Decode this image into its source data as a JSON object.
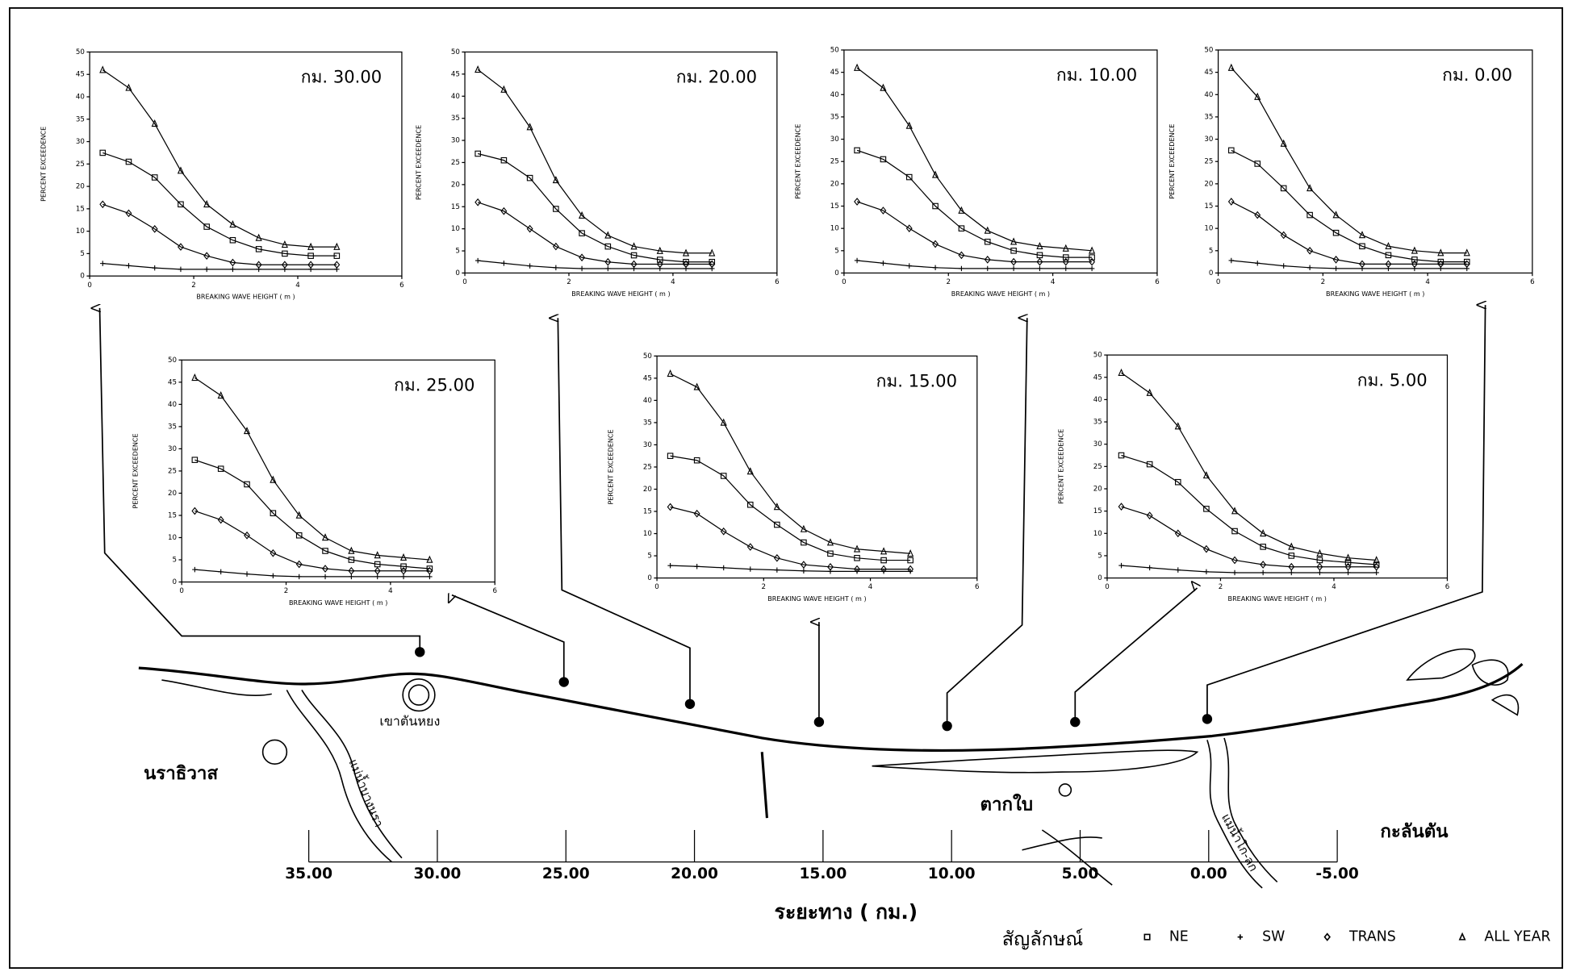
{
  "chart_data": [
    {
      "type": "line",
      "title": "กม. 30.00",
      "xlabel": "BREAKING WAVE HEIGHT ( m )",
      "ylabel": "PERCENT EXCEEDENCE",
      "xlim": [
        0,
        6
      ],
      "xticks": [
        0,
        2,
        4,
        6
      ],
      "ylim": [
        0,
        50
      ],
      "yticks": [
        0,
        5,
        10,
        15,
        20,
        25,
        30,
        35,
        40,
        45,
        50
      ],
      "x": [
        0.25,
        0.75,
        1.25,
        1.75,
        2.25,
        2.75,
        3.25,
        3.75,
        4.25,
        4.75
      ],
      "series": [
        {
          "name": "NE",
          "marker": "square",
          "color": "#000000",
          "values": [
            27.5,
            25.5,
            22,
            16,
            11,
            8,
            6,
            5,
            4.5,
            4.5
          ]
        },
        {
          "name": "SW",
          "marker": "plus",
          "color": "#000000",
          "values": [
            2.8,
            2.3,
            1.8,
            1.5,
            1.5,
            1.5,
            1.5,
            1.5,
            1.5,
            1.5
          ]
        },
        {
          "name": "TRANS",
          "marker": "diamond",
          "color": "#000000",
          "values": [
            16,
            14,
            10.5,
            6.5,
            4.5,
            3,
            2.5,
            2.5,
            2.5,
            2.5
          ]
        },
        {
          "name": "ALL YEAR",
          "marker": "triangle",
          "color": "#000000",
          "values": [
            46,
            42,
            34,
            23.5,
            16,
            11.5,
            8.5,
            7,
            6.5,
            6.5
          ]
        }
      ]
    },
    {
      "type": "line",
      "title": "กม. 20.00",
      "xlabel": "BREAKING WAVE HEIGHT ( m )",
      "ylabel": "PERCENT EXCEEDENCE",
      "xlim": [
        0,
        6
      ],
      "xticks": [
        0,
        2,
        4,
        6
      ],
      "ylim": [
        0,
        50
      ],
      "yticks": [
        0,
        5,
        10,
        15,
        20,
        25,
        30,
        35,
        40,
        45,
        50
      ],
      "x": [
        0.25,
        0.75,
        1.25,
        1.75,
        2.25,
        2.75,
        3.25,
        3.75,
        4.25,
        4.75
      ],
      "series": [
        {
          "name": "NE",
          "marker": "square",
          "color": "#000000",
          "values": [
            27,
            25.5,
            21.5,
            14.5,
            9,
            6,
            4,
            3,
            2.5,
            2.5
          ]
        },
        {
          "name": "SW",
          "marker": "plus",
          "color": "#000000",
          "values": [
            2.8,
            2.2,
            1.6,
            1.2,
            1,
            1,
            1,
            1,
            1,
            1
          ]
        },
        {
          "name": "TRANS",
          "marker": "diamond",
          "color": "#000000",
          "values": [
            16,
            14,
            10,
            6,
            3.5,
            2.5,
            2,
            2,
            2,
            2
          ]
        },
        {
          "name": "ALL YEAR",
          "marker": "triangle",
          "color": "#000000",
          "values": [
            46,
            41.5,
            33,
            21,
            13,
            8.5,
            6,
            5,
            4.5,
            4.5
          ]
        }
      ]
    },
    {
      "type": "line",
      "title": "กม. 10.00",
      "xlabel": "BREAKING WAVE HEIGHT ( m )",
      "ylabel": "PERCENT EXCEEDENCE",
      "xlim": [
        0,
        6
      ],
      "xticks": [
        0,
        2,
        4,
        6
      ],
      "ylim": [
        0,
        50
      ],
      "yticks": [
        0,
        5,
        10,
        15,
        20,
        25,
        30,
        35,
        40,
        45,
        50
      ],
      "x": [
        0.25,
        0.75,
        1.25,
        1.75,
        2.25,
        2.75,
        3.25,
        3.75,
        4.25,
        4.75
      ],
      "series": [
        {
          "name": "NE",
          "marker": "square",
          "color": "#000000",
          "values": [
            27.5,
            25.5,
            21.5,
            15,
            10,
            7,
            5,
            4,
            3.5,
            3.5
          ]
        },
        {
          "name": "SW",
          "marker": "plus",
          "color": "#000000",
          "values": [
            2.8,
            2.2,
            1.6,
            1.2,
            1,
            1,
            1,
            1,
            1,
            1
          ]
        },
        {
          "name": "TRANS",
          "marker": "diamond",
          "color": "#000000",
          "values": [
            16,
            14,
            10,
            6.5,
            4,
            3,
            2.5,
            2.5,
            2.5,
            2.5
          ]
        },
        {
          "name": "ALL YEAR",
          "marker": "triangle",
          "color": "#000000",
          "values": [
            46,
            41.5,
            33,
            22,
            14,
            9.5,
            7,
            6,
            5.5,
            5
          ]
        }
      ]
    },
    {
      "type": "line",
      "title": "กม. 0.00",
      "xlabel": "BREAKING WAVE HEIGHT ( m )",
      "ylabel": "PERCENT EXCEEDENCE",
      "xlim": [
        0,
        6
      ],
      "xticks": [
        0,
        2,
        4,
        6
      ],
      "ylim": [
        0,
        50
      ],
      "yticks": [
        0,
        5,
        10,
        15,
        20,
        25,
        30,
        35,
        40,
        45,
        50
      ],
      "x": [
        0.25,
        0.75,
        1.25,
        1.75,
        2.25,
        2.75,
        3.25,
        3.75,
        4.25,
        4.75
      ],
      "series": [
        {
          "name": "NE",
          "marker": "square",
          "color": "#000000",
          "values": [
            27.5,
            24.5,
            19,
            13,
            9,
            6,
            4,
            3,
            2.5,
            2.5
          ]
        },
        {
          "name": "SW",
          "marker": "plus",
          "color": "#000000",
          "values": [
            2.8,
            2.2,
            1.6,
            1.2,
            1,
            1,
            1,
            1,
            1,
            1
          ]
        },
        {
          "name": "TRANS",
          "marker": "diamond",
          "color": "#000000",
          "values": [
            16,
            13,
            8.5,
            5,
            3,
            2,
            2,
            2,
            2,
            2
          ]
        },
        {
          "name": "ALL YEAR",
          "marker": "triangle",
          "color": "#000000",
          "values": [
            46,
            39.5,
            29,
            19,
            13,
            8.5,
            6,
            5,
            4.5,
            4.5
          ]
        }
      ]
    },
    {
      "type": "line",
      "title": "กม. 25.00",
      "xlabel": "BREAKING WAVE HEIGHT ( m )",
      "ylabel": "PERCENT EXCEEDENCE",
      "xlim": [
        0,
        6
      ],
      "xticks": [
        0,
        2,
        4,
        6
      ],
      "ylim": [
        0,
        50
      ],
      "yticks": [
        0,
        5,
        10,
        15,
        20,
        25,
        30,
        35,
        40,
        45,
        50
      ],
      "x": [
        0.25,
        0.75,
        1.25,
        1.75,
        2.25,
        2.75,
        3.25,
        3.75,
        4.25,
        4.75
      ],
      "series": [
        {
          "name": "NE",
          "marker": "square",
          "color": "#000000",
          "values": [
            27.5,
            25.5,
            22,
            15.5,
            10.5,
            7,
            5,
            4,
            3.5,
            3
          ]
        },
        {
          "name": "SW",
          "marker": "plus",
          "color": "#000000",
          "values": [
            2.8,
            2.3,
            1.8,
            1.4,
            1.2,
            1.2,
            1.2,
            1.2,
            1.2,
            1.2
          ]
        },
        {
          "name": "TRANS",
          "marker": "diamond",
          "color": "#000000",
          "values": [
            16,
            14,
            10.5,
            6.5,
            4,
            3,
            2.5,
            2.5,
            2.5,
            2.5
          ]
        },
        {
          "name": "ALL YEAR",
          "marker": "triangle",
          "color": "#000000",
          "values": [
            46,
            42,
            34,
            23,
            15,
            10,
            7,
            6,
            5.5,
            5
          ]
        }
      ]
    },
    {
      "type": "line",
      "title": "กม. 15.00",
      "xlabel": "BREAKING WAVE HEIGHT ( m )",
      "ylabel": "PERCENT EXCEEDENCE",
      "xlim": [
        0,
        6
      ],
      "xticks": [
        0,
        2,
        4,
        6
      ],
      "ylim": [
        0,
        50
      ],
      "yticks": [
        0,
        5,
        10,
        15,
        20,
        25,
        30,
        35,
        40,
        45,
        50
      ],
      "x": [
        0.25,
        0.75,
        1.25,
        1.75,
        2.25,
        2.75,
        3.25,
        3.75,
        4.25,
        4.75
      ],
      "series": [
        {
          "name": "NE",
          "marker": "square",
          "color": "#000000",
          "values": [
            27.5,
            26.5,
            23,
            16.5,
            12,
            8,
            5.5,
            4.5,
            4,
            4
          ]
        },
        {
          "name": "SW",
          "marker": "plus",
          "color": "#000000",
          "values": [
            2.8,
            2.6,
            2.3,
            2,
            1.8,
            1.6,
            1.5,
            1.5,
            1.5,
            1.5
          ]
        },
        {
          "name": "TRANS",
          "marker": "diamond",
          "color": "#000000",
          "values": [
            16,
            14.5,
            10.5,
            7,
            4.5,
            3,
            2.5,
            2,
            2,
            2
          ]
        },
        {
          "name": "ALL YEAR",
          "marker": "triangle",
          "color": "#000000",
          "values": [
            46,
            43,
            35,
            24,
            16,
            11,
            8,
            6.5,
            6,
            5.5
          ]
        }
      ]
    },
    {
      "type": "line",
      "title": "กม. 5.00",
      "xlabel": "BREAKING WAVE HEIGHT ( m )",
      "ylabel": "PERCENT EXCEEDENCE",
      "xlim": [
        0,
        6
      ],
      "xticks": [
        0,
        2,
        4,
        6
      ],
      "ylim": [
        0,
        50
      ],
      "yticks": [
        0,
        5,
        10,
        15,
        20,
        25,
        30,
        35,
        40,
        45,
        50
      ],
      "x": [
        0.25,
        0.75,
        1.25,
        1.75,
        2.25,
        2.75,
        3.25,
        3.75,
        4.25,
        4.75
      ],
      "series": [
        {
          "name": "NE",
          "marker": "square",
          "color": "#000000",
          "values": [
            27.5,
            25.5,
            21.5,
            15.5,
            10.5,
            7,
            5,
            4,
            3.5,
            3
          ]
        },
        {
          "name": "SW",
          "marker": "plus",
          "color": "#000000",
          "values": [
            2.8,
            2.3,
            1.8,
            1.4,
            1.2,
            1.2,
            1.2,
            1.2,
            1.2,
            1.2
          ]
        },
        {
          "name": "TRANS",
          "marker": "diamond",
          "color": "#000000",
          "values": [
            16,
            14,
            10,
            6.5,
            4,
            3,
            2.5,
            2.5,
            2.5,
            2.5
          ]
        },
        {
          "name": "ALL YEAR",
          "marker": "triangle",
          "color": "#000000",
          "values": [
            46,
            41.5,
            34,
            23,
            15,
            10,
            7,
            5.5,
            4.5,
            4
          ]
        }
      ]
    }
  ],
  "map": {
    "places": [
      "นราธิวาส",
      "เขาตันหยง",
      "ตากใบ",
      "กะลันตัน"
    ],
    "rivers": [
      "แม่น้ำบางนรา",
      "แม่น้ำโก-ลก"
    ],
    "axis_title": "ระยะทาง ( กม.)",
    "xlim": [
      35,
      -5
    ],
    "xticks": [
      {
        "value": 35,
        "label": "35.00"
      },
      {
        "value": 30,
        "label": "30.00"
      },
      {
        "value": 25,
        "label": "25.00"
      },
      {
        "value": 20,
        "label": "20.00"
      },
      {
        "value": 15,
        "label": "15.00"
      },
      {
        "value": 10,
        "label": "10.00"
      },
      {
        "value": 5,
        "label": "5.00"
      },
      {
        "value": 0,
        "label": "0.00"
      },
      {
        "value": -5,
        "label": "-5.00"
      }
    ],
    "legend_title": "สัญลักษณ์"
  }
}
